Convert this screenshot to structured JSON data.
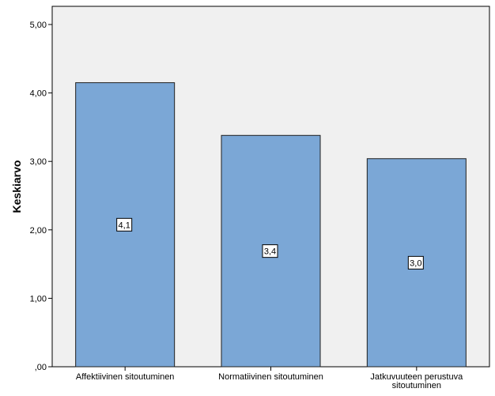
{
  "chart_data": {
    "type": "bar",
    "categories": [
      [
        "Affektiivinen sitoutuminen"
      ],
      [
        "Normatiivinen sitoutuminen"
      ],
      [
        "Jatkuvuuteen perustuva",
        "sitoutuminen"
      ]
    ],
    "values": [
      4.15,
      3.38,
      3.04
    ],
    "data_labels": [
      "4,1",
      "3,4",
      "3,0"
    ],
    "ylabel": "Keskiarvo",
    "xlabel": "",
    "ylim": [
      0,
      5
    ],
    "yticks": [
      0,
      1,
      2,
      3,
      4,
      5
    ],
    "ytick_labels": [
      ",00",
      "1,00",
      "2,00",
      "3,00",
      "4,00",
      "5,00"
    ],
    "grid": false,
    "colors": {
      "bar_fill": "#7BA7D6",
      "bar_stroke": "#1F1F1F",
      "plot_background": "#F0F0F0",
      "axis": "#000000"
    }
  }
}
